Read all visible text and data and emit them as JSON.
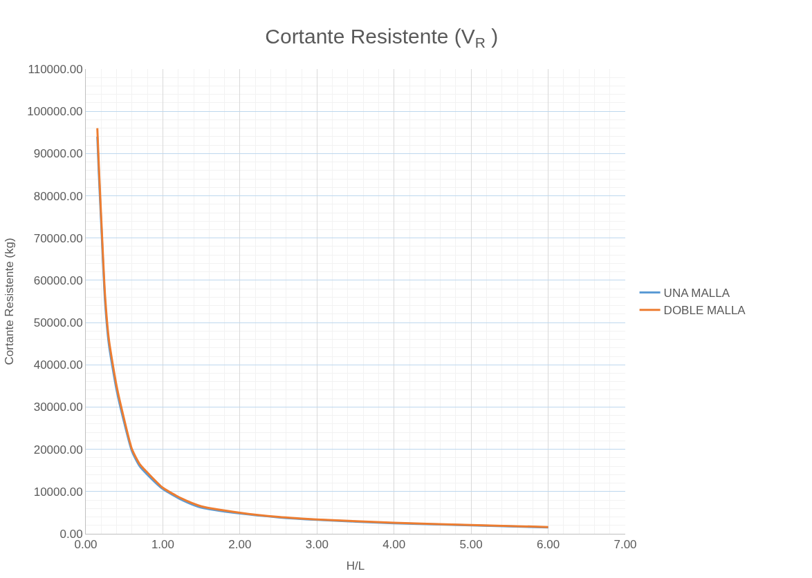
{
  "chart_data": {
    "type": "line",
    "title": "Cortante Resistente (V$_{R}$ )",
    "xlabel": "H/L",
    "ylabel": "Cortante Resistente (kg)",
    "x": [
      0.15,
      0.17,
      0.2,
      0.25,
      0.3,
      0.4,
      0.5,
      0.6,
      0.7,
      0.8,
      1.0,
      1.25,
      1.5,
      2.0,
      2.5,
      3.0,
      4.0,
      5.0,
      6.0
    ],
    "series": [
      {
        "name": "UNA MALLA",
        "color": "#5b9bd5",
        "values": [
          94000,
          85000,
          73500,
          55000,
          44800,
          34000,
          26200,
          19500,
          16000,
          14000,
          10600,
          8000,
          6200,
          4800,
          3900,
          3300,
          2500,
          2000,
          1500
        ]
      },
      {
        "name": "DOBLE MALLA",
        "color": "#ed7d31",
        "values": [
          96000,
          87000,
          75000,
          56500,
          46000,
          35000,
          27000,
          20000,
          16500,
          14500,
          10900,
          8300,
          6500,
          5000,
          4000,
          3400,
          2600,
          2100,
          1600
        ]
      }
    ],
    "xlim": [
      0,
      7
    ],
    "xticks": [
      {
        "value": 0,
        "label": "0.00"
      },
      {
        "value": 1,
        "label": "1.00"
      },
      {
        "value": 2,
        "label": "2.00"
      },
      {
        "value": 3,
        "label": "3.00"
      },
      {
        "value": 4,
        "label": "4.00"
      },
      {
        "value": 5,
        "label": "5.00"
      },
      {
        "value": 6,
        "label": "6.00"
      },
      {
        "value": 7,
        "label": "7.00"
      }
    ],
    "ylim": [
      0,
      110000
    ],
    "yticks": [
      {
        "value": 0,
        "label": "0.00"
      },
      {
        "value": 10000,
        "label": "10000.00"
      },
      {
        "value": 20000,
        "label": "20000.00"
      },
      {
        "value": 30000,
        "label": "30000.00"
      },
      {
        "value": 40000,
        "label": "40000.00"
      },
      {
        "value": 50000,
        "label": "50000.00"
      },
      {
        "value": 60000,
        "label": "60000.00"
      },
      {
        "value": 70000,
        "label": "70000.00"
      },
      {
        "value": 80000,
        "label": "80000.00"
      },
      {
        "value": 90000,
        "label": "90000.00"
      },
      {
        "value": 100000,
        "label": "100000.00"
      },
      {
        "value": 110000,
        "label": "110000.00"
      }
    ],
    "grid": true,
    "legend": "right",
    "marker": "none",
    "line_style": "solid"
  }
}
